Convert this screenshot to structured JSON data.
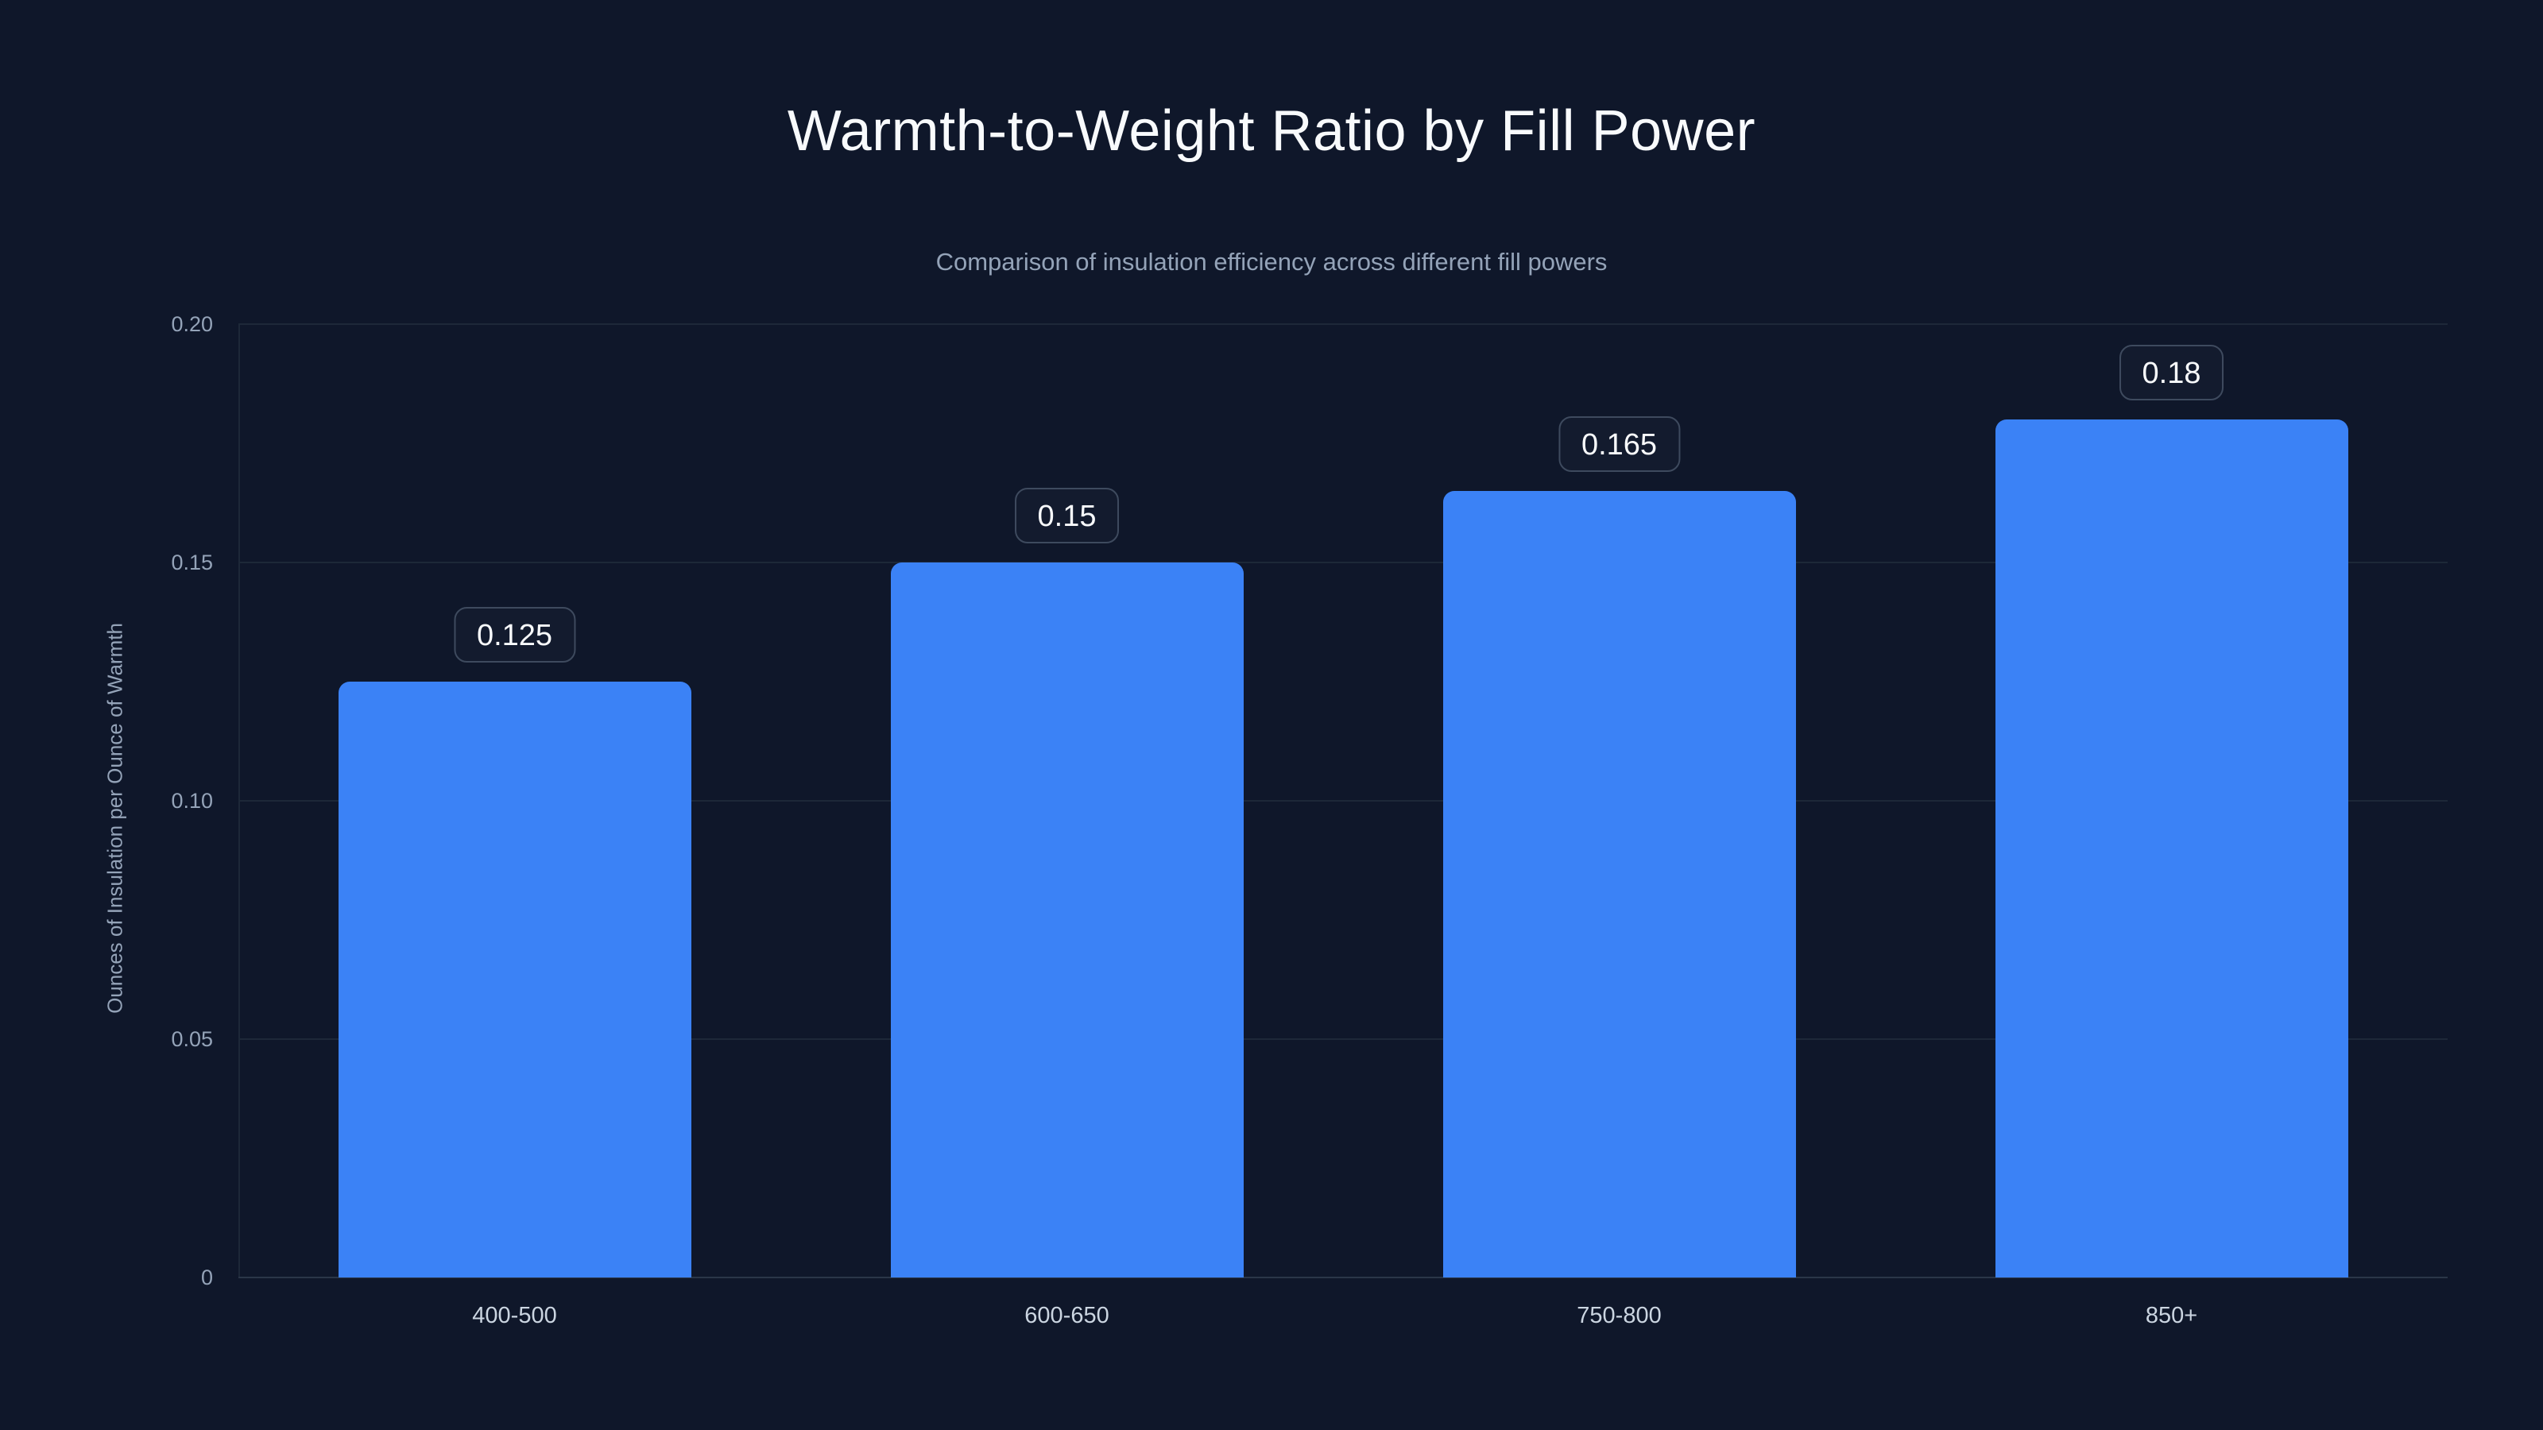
{
  "chart_data": {
    "type": "bar",
    "title": "Warmth-to-Weight Ratio by Fill Power",
    "subtitle": "Comparison of insulation efficiency across different fill powers",
    "categories": [
      "400-500",
      "600-650",
      "750-800",
      "850+"
    ],
    "values": [
      0.125,
      0.15,
      0.165,
      0.18
    ],
    "value_labels": [
      "0.125",
      "0.15",
      "0.165",
      "0.18"
    ],
    "xlabel": "",
    "ylabel": "Ounces of Insulation per Ounce of Warmth",
    "ylim": [
      0,
      0.2
    ],
    "yticks": [
      {
        "value": 0,
        "label": "0"
      },
      {
        "value": 0.05,
        "label": "0.05"
      },
      {
        "value": 0.1,
        "label": "0.10"
      },
      {
        "value": 0.15,
        "label": "0.15"
      },
      {
        "value": 0.2,
        "label": "0.20"
      }
    ],
    "grid": true,
    "legend": false,
    "colors": {
      "background": "#0f172a",
      "bar": "#3b82f6",
      "gridline": "#1d2838",
      "axis_line": "#2a3648",
      "title_text": "#f8fafc",
      "subtitle_text": "#94a3b8",
      "tick_text": "#94a3b8",
      "xtick_text": "#cbd5e1",
      "badge_text": "#f8fafc",
      "badge_border": "#3e4a5e"
    }
  }
}
